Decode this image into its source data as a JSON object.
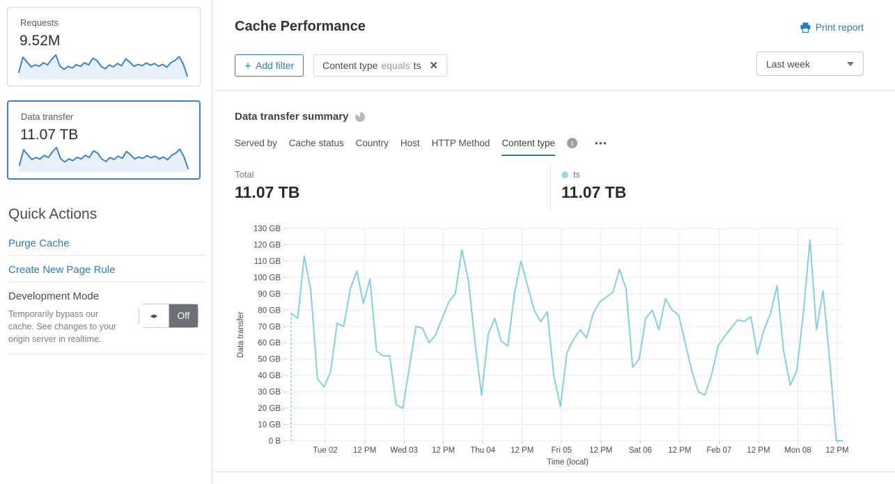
{
  "header": {
    "title": "Cache Performance",
    "print_label": "Print report"
  },
  "sidebar": {
    "cards": [
      {
        "label": "Requests",
        "value": "9.52M",
        "selected": false,
        "sparkline": [
          25,
          80,
          62,
          45,
          52,
          47,
          60,
          52,
          72,
          88,
          48,
          36,
          47,
          41,
          53,
          47,
          60,
          52,
          76,
          68,
          47,
          38,
          52,
          45,
          57,
          49,
          74,
          62,
          47,
          54,
          49,
          59,
          51,
          57,
          47,
          54,
          44,
          60,
          68,
          82,
          55,
          12
        ]
      },
      {
        "label": "Data transfer",
        "value": "11.07 TB",
        "selected": true,
        "sparkline": [
          25,
          80,
          62,
          45,
          52,
          47,
          60,
          52,
          72,
          88,
          48,
          36,
          47,
          41,
          53,
          47,
          60,
          52,
          76,
          68,
          47,
          38,
          52,
          45,
          57,
          49,
          74,
          62,
          47,
          54,
          49,
          59,
          51,
          57,
          47,
          54,
          44,
          60,
          68,
          82,
          55,
          12
        ]
      }
    ],
    "quick_actions": {
      "heading": "Quick Actions",
      "links": [
        "Purge Cache",
        "Create New Page Rule"
      ],
      "dev_mode": {
        "title": "Development Mode",
        "description": "Temporarily bypass our cache. See changes to your origin server in realtime.",
        "arrows_glyph": "◂▸",
        "toggle_state": "Off"
      }
    }
  },
  "filters": {
    "add_plus": "+",
    "add_label": "Add filter",
    "chip": {
      "field": "Content type",
      "operator": "equals",
      "value": "ts",
      "close_glyph": "✕"
    },
    "range_value": "Last week"
  },
  "summary": {
    "heading": "Data transfer summary",
    "tabs": [
      {
        "label": "Served by",
        "active": false
      },
      {
        "label": "Cache status",
        "active": false
      },
      {
        "label": "Country",
        "active": false
      },
      {
        "label": "Host",
        "active": false
      },
      {
        "label": "HTTP Method",
        "active": false
      },
      {
        "label": "Content type",
        "active": true
      }
    ],
    "info_glyph": "i",
    "more_glyph": "•••",
    "total": {
      "label": "Total",
      "value": "11.07 TB"
    },
    "legend": {
      "name": "ts",
      "value": "11.07 TB",
      "color": "#9ed9e6"
    }
  },
  "chart_data": {
    "type": "line",
    "title": "Data transfer summary",
    "time_range": "Last week",
    "xlabel": "Time (local)",
    "ylabel": "Data transfer",
    "ylim_gb": [
      0,
      130
    ],
    "grid": true,
    "y_ticks": [
      "0 B",
      "10 GB",
      "20 GB",
      "30 GB",
      "40 GB",
      "50 GB",
      "60 GB",
      "70 GB",
      "80 GB",
      "90 GB",
      "100 GB",
      "110 GB",
      "120 GB",
      "130 GB"
    ],
    "x_ticks": [
      "Tue 02",
      "12 PM",
      "Wed 03",
      "12 PM",
      "Thu 04",
      "12 PM",
      "Fri 05",
      "12 PM",
      "Sat 06",
      "12 PM",
      "Feb 07",
      "12 PM",
      "Mon 08",
      "12 PM"
    ],
    "start_dashed_marker": true,
    "series": [
      {
        "name": "ts",
        "color": "#87cede",
        "unit": "GB",
        "total": "11.07 TB",
        "sample_interval_hours": 2,
        "values_gb": [
          78,
          75,
          113,
          92,
          38,
          33,
          42,
          72,
          70,
          93,
          104,
          84,
          99,
          55,
          52,
          52,
          22,
          20,
          45,
          70,
          69,
          60,
          65,
          75,
          85,
          90,
          117,
          98,
          60,
          28,
          65,
          75,
          61,
          58,
          90,
          110,
          95,
          80,
          73,
          79,
          40,
          21,
          54,
          62,
          68,
          63,
          78,
          85,
          88,
          91,
          105,
          93,
          45,
          50,
          75,
          80,
          68,
          87,
          80,
          77,
          60,
          43,
          30,
          28,
          40,
          58,
          64,
          69,
          74,
          73,
          76,
          53,
          68,
          78,
          95,
          55,
          34,
          43,
          78,
          123,
          68,
          92,
          50,
          0,
          0
        ]
      }
    ]
  },
  "colors": {
    "link_blue": "#2f7bbf",
    "print_blue": "#2c7bb8",
    "selected_card_border": "#3d82c2",
    "sparkline_line": "#3d82c2",
    "sparkline_fill": "#e8f1f9",
    "chart_line": "#87cede",
    "tab_underline": "#2d7f9a",
    "toggle_off_bg": "#6b7176",
    "grid_line": "#ebebeb"
  }
}
